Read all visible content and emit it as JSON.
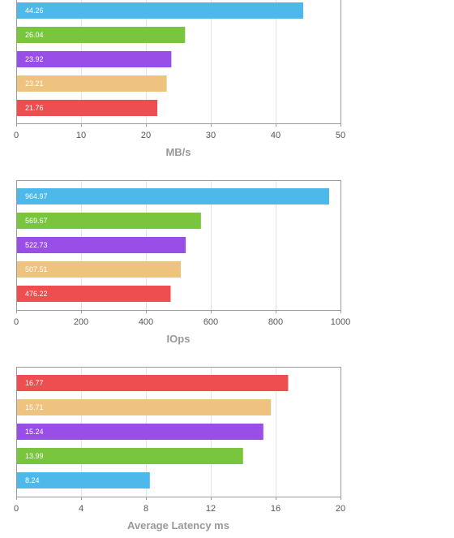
{
  "colors": {
    "blue": "#4db8ea",
    "green": "#79c53e",
    "purple": "#9a4ee8",
    "tan": "#eec27f",
    "red": "#ee4e4f",
    "grid": "#e4e4e4",
    "frame": "#9b9b9b"
  },
  "chart_data": [
    {
      "type": "bar",
      "orientation": "horizontal",
      "xlabel": "MB/s",
      "xlim": [
        0,
        50
      ],
      "xticks": [
        0,
        10,
        20,
        30,
        40,
        50
      ],
      "xtick_labels": [
        "0",
        "10",
        "20",
        "30",
        "40",
        "50"
      ],
      "grid": true,
      "bars": [
        {
          "value": 44.26,
          "label": "44.26",
          "color": "#4db8ea"
        },
        {
          "value": 26.04,
          "label": "26.04",
          "color": "#79c53e"
        },
        {
          "value": 23.92,
          "label": "23.92",
          "color": "#9a4ee8"
        },
        {
          "value": 23.21,
          "label": "23.21",
          "color": "#eec27f"
        },
        {
          "value": 21.76,
          "label": "21.76",
          "color": "#ee4e4f"
        }
      ]
    },
    {
      "type": "bar",
      "orientation": "horizontal",
      "xlabel": "IOps",
      "xlim": [
        0,
        1000
      ],
      "xticks": [
        0,
        200,
        400,
        600,
        800,
        1000
      ],
      "xtick_labels": [
        "0",
        "200",
        "400",
        "600",
        "800",
        "1000"
      ],
      "grid": true,
      "bars": [
        {
          "value": 964.97,
          "label": "964.97",
          "color": "#4db8ea"
        },
        {
          "value": 569.67,
          "label": "569.67",
          "color": "#79c53e"
        },
        {
          "value": 522.73,
          "label": "522.73",
          "color": "#9a4ee8"
        },
        {
          "value": 507.51,
          "label": "507.51",
          "color": "#eec27f"
        },
        {
          "value": 476.22,
          "label": "476.22",
          "color": "#ee4e4f"
        }
      ]
    },
    {
      "type": "bar",
      "orientation": "horizontal",
      "xlabel": "Average Latency ms",
      "xlim": [
        0,
        20
      ],
      "xticks": [
        0,
        4,
        8,
        12,
        16,
        20
      ],
      "xtick_labels": [
        "0",
        "4",
        "8",
        "12",
        "16",
        "20"
      ],
      "grid": true,
      "bars": [
        {
          "value": 16.77,
          "label": "16.77",
          "color": "#ee4e4f"
        },
        {
          "value": 15.71,
          "label": "15.71",
          "color": "#eec27f"
        },
        {
          "value": 15.24,
          "label": "15.24",
          "color": "#9a4ee8"
        },
        {
          "value": 13.99,
          "label": "13.99",
          "color": "#79c53e"
        },
        {
          "value": 8.24,
          "label": "8.24",
          "color": "#4db8ea"
        }
      ]
    }
  ]
}
